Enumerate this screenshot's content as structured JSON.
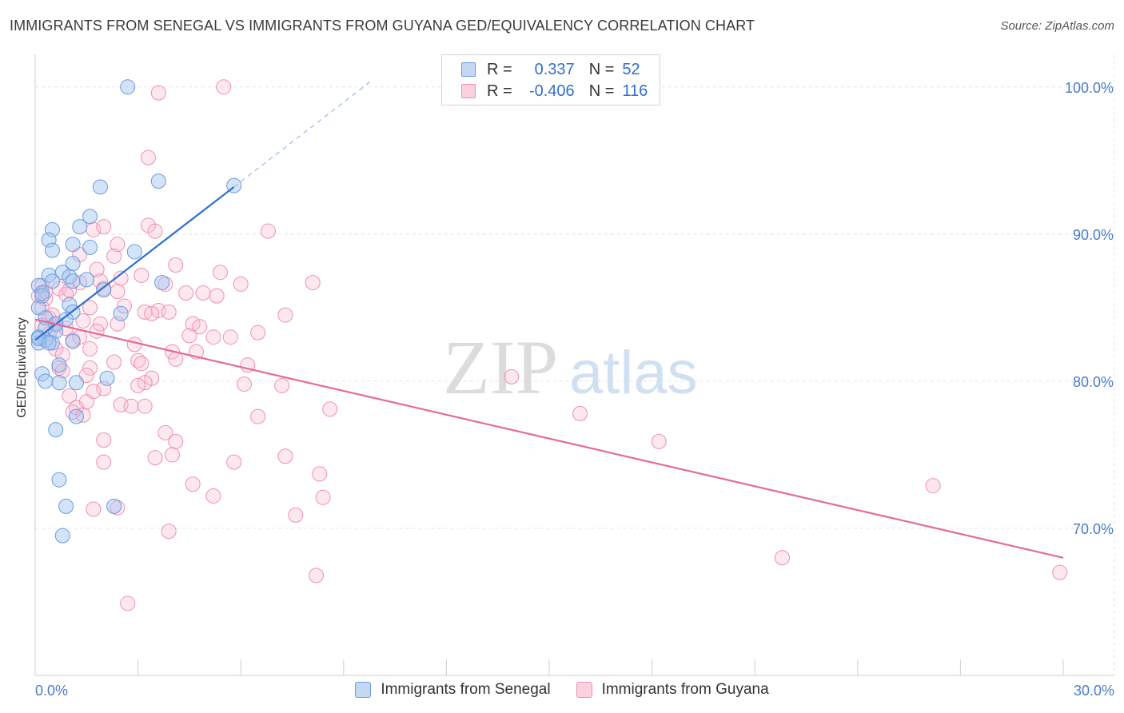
{
  "chart_data": {
    "type": "scatter",
    "title": "IMMIGRANTS FROM SENEGAL VS IMMIGRANTS FROM GUYANA GED/EQUIVALENCY CORRELATION CHART",
    "source": "Source: ZipAtlas.com",
    "ylabel": "GED/Equivalency",
    "xlabel": "",
    "xlim": [
      0,
      30
    ],
    "ylim": [
      60,
      102
    ],
    "x_tick_labels": [
      "0.0%",
      "30.0%"
    ],
    "y_ticks": [
      {
        "value": 100,
        "label": "100.0%"
      },
      {
        "value": 90,
        "label": "90.0%"
      },
      {
        "value": 80,
        "label": "80.0%"
      },
      {
        "value": 70,
        "label": "70.0%"
      }
    ],
    "watermark": {
      "zip": "ZIP",
      "atlas": "atlas"
    },
    "colors": {
      "senegal": "#6a9be0",
      "guyana": "#f08fb0",
      "senegal_line": "#2f6fd0",
      "guyana_line": "#e46a9a"
    },
    "legend": {
      "r_label": "R =",
      "n_label": "N =",
      "rows": [
        {
          "r": "0.337",
          "n": "52"
        },
        {
          "r": "-0.406",
          "n": "116"
        }
      ]
    },
    "series": [
      {
        "name": "Immigrants from Senegal",
        "r": 0.337,
        "n": 52,
        "trend": {
          "x0": 0.0,
          "y0": 82.8,
          "x1": 5.8,
          "y1": 93.2,
          "dash_to_x": 9.8,
          "dash_to_y": 100.4
        },
        "points": [
          [
            2.7,
            100.0
          ],
          [
            3.6,
            93.6
          ],
          [
            1.9,
            93.2
          ],
          [
            5.8,
            93.3
          ],
          [
            1.6,
            91.2
          ],
          [
            1.3,
            90.5
          ],
          [
            0.5,
            90.3
          ],
          [
            0.4,
            89.6
          ],
          [
            1.1,
            89.3
          ],
          [
            1.6,
            89.1
          ],
          [
            0.5,
            88.9
          ],
          [
            2.9,
            88.8
          ],
          [
            1.1,
            88.0
          ],
          [
            0.8,
            87.4
          ],
          [
            0.4,
            87.2
          ],
          [
            1.0,
            87.1
          ],
          [
            0.5,
            86.8
          ],
          [
            1.1,
            86.8
          ],
          [
            3.7,
            86.7
          ],
          [
            0.1,
            86.5
          ],
          [
            2.0,
            86.2
          ],
          [
            0.2,
            86.0
          ],
          [
            1.0,
            85.2
          ],
          [
            0.1,
            85.0
          ],
          [
            1.1,
            84.7
          ],
          [
            2.5,
            84.6
          ],
          [
            0.3,
            84.3
          ],
          [
            0.9,
            84.2
          ],
          [
            0.6,
            83.9
          ],
          [
            0.3,
            83.6
          ],
          [
            0.6,
            83.4
          ],
          [
            0.1,
            83.0
          ],
          [
            0.3,
            82.8
          ],
          [
            0.1,
            82.6
          ],
          [
            0.5,
            82.6
          ],
          [
            1.1,
            82.7
          ],
          [
            0.7,
            81.1
          ],
          [
            0.2,
            80.5
          ],
          [
            2.1,
            80.2
          ],
          [
            0.3,
            80.0
          ],
          [
            0.7,
            79.9
          ],
          [
            1.2,
            79.9
          ],
          [
            1.2,
            77.6
          ],
          [
            0.6,
            76.7
          ],
          [
            0.7,
            73.3
          ],
          [
            0.9,
            71.5
          ],
          [
            2.3,
            71.5
          ],
          [
            0.8,
            69.5
          ],
          [
            0.1,
            82.9
          ],
          [
            0.4,
            82.6
          ],
          [
            0.2,
            85.8
          ],
          [
            1.5,
            86.9
          ]
        ]
      },
      {
        "name": "Immigrants from Guyana",
        "r": -0.406,
        "n": 116,
        "trend": {
          "x0": 0.0,
          "y0": 84.2,
          "x1": 30.0,
          "y1": 68.0
        },
        "points": [
          [
            5.5,
            100.0
          ],
          [
            3.6,
            99.6
          ],
          [
            3.3,
            95.2
          ],
          [
            1.7,
            90.3
          ],
          [
            2.0,
            90.5
          ],
          [
            3.3,
            90.6
          ],
          [
            3.5,
            90.2
          ],
          [
            6.8,
            90.2
          ],
          [
            2.4,
            89.3
          ],
          [
            1.3,
            88.6
          ],
          [
            2.3,
            88.5
          ],
          [
            4.1,
            87.9
          ],
          [
            1.8,
            87.6
          ],
          [
            5.4,
            87.4
          ],
          [
            3.1,
            87.2
          ],
          [
            1.9,
            86.8
          ],
          [
            1.3,
            86.7
          ],
          [
            6.0,
            86.6
          ],
          [
            8.1,
            86.7
          ],
          [
            3.8,
            86.6
          ],
          [
            0.2,
            86.5
          ],
          [
            0.7,
            86.3
          ],
          [
            2.0,
            86.3
          ],
          [
            4.4,
            86.0
          ],
          [
            4.9,
            86.0
          ],
          [
            5.3,
            85.8
          ],
          [
            0.1,
            85.8
          ],
          [
            0.3,
            85.6
          ],
          [
            0.9,
            85.9
          ],
          [
            2.6,
            85.1
          ],
          [
            1.6,
            85.0
          ],
          [
            0.2,
            85.0
          ],
          [
            3.6,
            84.8
          ],
          [
            3.2,
            84.7
          ],
          [
            3.4,
            84.6
          ],
          [
            3.9,
            84.7
          ],
          [
            7.3,
            84.5
          ],
          [
            0.4,
            84.3
          ],
          [
            1.4,
            84.1
          ],
          [
            2.4,
            83.9
          ],
          [
            4.6,
            83.9
          ],
          [
            0.6,
            83.8
          ],
          [
            1.9,
            83.9
          ],
          [
            4.8,
            83.7
          ],
          [
            0.9,
            83.6
          ],
          [
            1.8,
            83.4
          ],
          [
            6.5,
            83.3
          ],
          [
            0.4,
            83.2
          ],
          [
            5.2,
            83.0
          ],
          [
            4.5,
            83.1
          ],
          [
            5.7,
            83.0
          ],
          [
            1.1,
            82.8
          ],
          [
            2.9,
            82.5
          ],
          [
            0.6,
            82.2
          ],
          [
            4.0,
            82.0
          ],
          [
            1.6,
            82.2
          ],
          [
            4.7,
            82.0
          ],
          [
            0.8,
            81.8
          ],
          [
            4.1,
            81.5
          ],
          [
            3.0,
            81.4
          ],
          [
            2.3,
            81.3
          ],
          [
            3.1,
            81.2
          ],
          [
            6.2,
            81.1
          ],
          [
            0.7,
            80.9
          ],
          [
            0.8,
            80.7
          ],
          [
            1.6,
            80.9
          ],
          [
            13.9,
            80.3
          ],
          [
            3.4,
            80.2
          ],
          [
            3.2,
            79.9
          ],
          [
            2.0,
            79.5
          ],
          [
            3.0,
            79.7
          ],
          [
            6.1,
            79.8
          ],
          [
            7.2,
            79.7
          ],
          [
            1.7,
            79.3
          ],
          [
            1.0,
            79.0
          ],
          [
            1.5,
            78.6
          ],
          [
            2.5,
            78.4
          ],
          [
            2.8,
            78.3
          ],
          [
            1.2,
            78.2
          ],
          [
            1.1,
            77.9
          ],
          [
            8.6,
            78.1
          ],
          [
            1.4,
            77.7
          ],
          [
            15.9,
            77.8
          ],
          [
            6.5,
            77.6
          ],
          [
            3.8,
            76.5
          ],
          [
            2.0,
            76.0
          ],
          [
            4.1,
            75.9
          ],
          [
            18.2,
            75.9
          ],
          [
            4.0,
            75.0
          ],
          [
            7.3,
            74.9
          ],
          [
            3.5,
            74.8
          ],
          [
            2.0,
            74.5
          ],
          [
            5.8,
            74.5
          ],
          [
            8.3,
            73.7
          ],
          [
            4.6,
            73.0
          ],
          [
            26.2,
            72.9
          ],
          [
            5.2,
            72.2
          ],
          [
            8.4,
            72.1
          ],
          [
            1.7,
            71.3
          ],
          [
            2.4,
            71.4
          ],
          [
            7.6,
            70.9
          ],
          [
            3.9,
            69.8
          ],
          [
            21.8,
            68.0
          ],
          [
            8.2,
            66.8
          ],
          [
            29.9,
            67.0
          ],
          [
            2.7,
            64.9
          ],
          [
            0.6,
            83.9
          ],
          [
            0.3,
            86.1
          ],
          [
            0.5,
            84.5
          ],
          [
            1.3,
            83.0
          ],
          [
            2.5,
            87.0
          ],
          [
            1.0,
            86.2
          ],
          [
            0.2,
            83.8
          ],
          [
            1.5,
            80.4
          ],
          [
            3.2,
            78.3
          ],
          [
            2.4,
            86.1
          ]
        ]
      }
    ]
  }
}
